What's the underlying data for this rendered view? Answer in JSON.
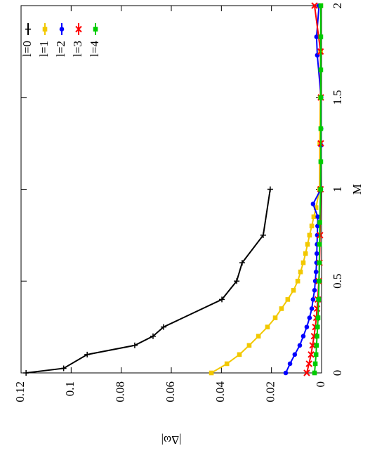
{
  "chart_data": {
    "type": "line",
    "x_label": "M",
    "y_label": "|Δω|",
    "xlim": [
      0,
      2
    ],
    "xticks": [
      0,
      0.5,
      1,
      1.5,
      2
    ],
    "ylim": [
      0,
      0.12
    ],
    "yticks": [
      0,
      0.02,
      0.04,
      0.06,
      0.08,
      0.1,
      0.12
    ],
    "legend": "top-right",
    "rotated": true,
    "series": [
      {
        "name": "l=0",
        "color": "#000000",
        "marker": "plus",
        "x": [
          0,
          0.025,
          0.1,
          0.15,
          0.2,
          0.25,
          0.4,
          0.5,
          0.6,
          0.75,
          1.0
        ],
        "values": [
          0.118,
          0.103,
          0.0936,
          0.0746,
          0.0673,
          0.0631,
          0.0398,
          0.0339,
          0.0317,
          0.0233,
          0.0205
        ]
      },
      {
        "name": "l=1",
        "color": "#f2c800",
        "marker": "square",
        "x": [
          0,
          0.05,
          0.1,
          0.15,
          0.2,
          0.25,
          0.3,
          0.35,
          0.4,
          0.45,
          0.5,
          0.55,
          0.6,
          0.65,
          0.7,
          0.75,
          0.8,
          0.85,
          0.9,
          1.0,
          1.25,
          1.5,
          1.75,
          2.0
        ],
        "values": [
          0.044,
          0.0378,
          0.0328,
          0.0289,
          0.0252,
          0.0216,
          0.0185,
          0.016,
          0.0135,
          0.0112,
          0.0095,
          0.0084,
          0.0073,
          0.0064,
          0.0056,
          0.0048,
          0.0039,
          0.0031,
          0.0022,
          0.0008,
          0.0007,
          0.0005,
          0.0004,
          0.0003
        ]
      },
      {
        "name": "l=2",
        "color": "#0000ff",
        "marker": "circle",
        "x": [
          0,
          0.05,
          0.1,
          0.15,
          0.2,
          0.25,
          0.3,
          0.35,
          0.4,
          0.45,
          0.5,
          0.55,
          0.6,
          0.65,
          0.7,
          0.75,
          0.8,
          0.85,
          0.92,
          1.0,
          1.24,
          1.33,
          1.5,
          1.73,
          1.83,
          2.0
        ],
        "values": [
          0.0143,
          0.0126,
          0.0107,
          0.0087,
          0.0073,
          0.0059,
          0.0048,
          0.0039,
          0.0034,
          0.0028,
          0.0025,
          0.0022,
          0.002,
          0.0019,
          0.0018,
          0.0017,
          0.0016,
          0.0015,
          0.0034,
          0.0003,
          0.0002,
          0.0002,
          0.0002,
          0.0017,
          0.002,
          0.001
        ]
      },
      {
        "name": "l=3",
        "color": "#ff0000",
        "marker": "cross",
        "x": [
          0,
          0.05,
          0.1,
          0.15,
          0.2,
          0.25,
          0.3,
          0.35,
          0.4,
          0.5,
          0.6,
          0.75,
          1.0,
          1.25,
          1.5,
          1.75,
          2.0
        ],
        "values": [
          0.0059,
          0.005,
          0.0042,
          0.0036,
          0.003,
          0.0025,
          0.0021,
          0.0018,
          0.0015,
          0.0011,
          0.0008,
          0.0006,
          0.0004,
          0.0003,
          0.0003,
          0.0004,
          0.0028
        ]
      },
      {
        "name": "l=4",
        "color": "#00cc00",
        "marker": "square",
        "x": [
          0,
          0.05,
          0.1,
          0.15,
          0.2,
          0.25,
          0.3,
          0.4,
          0.5,
          0.6,
          0.7,
          0.82,
          1.0,
          1.15,
          1.33,
          1.5,
          1.65,
          1.83,
          2.0
        ],
        "values": [
          0.0028,
          0.0025,
          0.0022,
          0.002,
          0.0018,
          0.0016,
          0.0014,
          0.0012,
          0.001,
          0.0009,
          0.0008,
          0.0007,
          0.0004,
          0.0003,
          0.0003,
          0.0003,
          0.0003,
          0.0003,
          0.0003
        ]
      }
    ]
  }
}
